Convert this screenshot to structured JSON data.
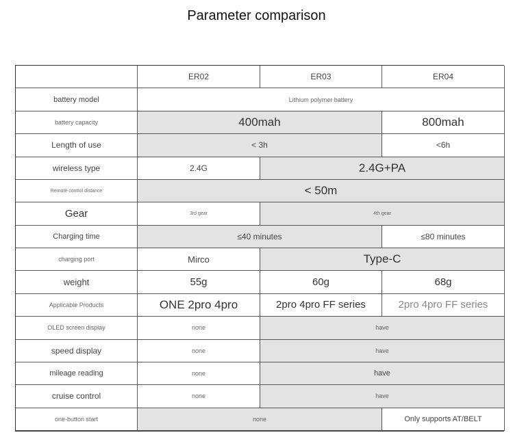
{
  "title": "Parameter comparison",
  "headers": [
    "",
    "ER02",
    "ER03",
    "ER04"
  ],
  "rows": [
    {
      "label": "battery model",
      "cells": [
        "Lithium polymer battery"
      ]
    },
    {
      "label": "battery capacity",
      "cells": [
        "400mah",
        "800mah"
      ]
    },
    {
      "label": "Length of use",
      "cells": [
        "< 3h",
        "<6h"
      ]
    },
    {
      "label": "wireless type",
      "cells": [
        "2.4G",
        "2.4G+PA"
      ]
    },
    {
      "label": "Remote control distance",
      "cells": [
        "< 50m"
      ]
    },
    {
      "label": "Gear",
      "cells": [
        "3rd gear",
        "4th gear"
      ]
    },
    {
      "label": "Charging time",
      "cells": [
        "≤40 minutes",
        "≤80 minutes"
      ]
    },
    {
      "label": "charging port",
      "cells": [
        "Mirco",
        "Type-C"
      ]
    },
    {
      "label": "weight",
      "cells": [
        "55g",
        "60g",
        "68g"
      ]
    },
    {
      "label": "Applicable Products",
      "cells": [
        "ONE 2pro 4pro",
        "2pro 4pro FF series",
        "2pro 4pro FF series"
      ]
    },
    {
      "label": "OLED screen display",
      "cells": [
        "none",
        "have"
      ]
    },
    {
      "label": "speed display",
      "cells": [
        "none",
        "have"
      ]
    },
    {
      "label": "mileage reading",
      "cells": [
        "none",
        "have"
      ]
    },
    {
      "label": "cruise control",
      "cells": [
        "none",
        "have"
      ]
    },
    {
      "label": "one-button start",
      "cells": [
        "none",
        "Only supports AT/BELT"
      ]
    }
  ]
}
